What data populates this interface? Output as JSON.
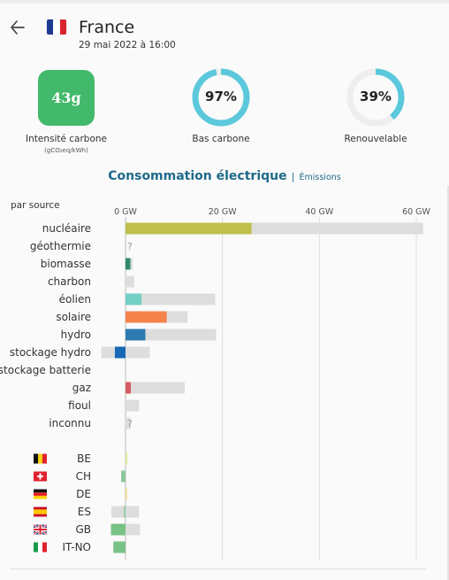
{
  "header": {
    "back_icon": "arrow-left-icon",
    "flag_icon": "france-flag-icon",
    "country": "France",
    "datetime": "29 mai 2022 à 16:00"
  },
  "metrics": {
    "carbon_intensity": {
      "value": "43g",
      "label": "Intensité carbone",
      "unit": "(gCO₂eq/kWh)",
      "color": "#43b96b"
    },
    "low_carbon": {
      "value": "97%",
      "label": "Bas carbone",
      "fraction": 0.97
    },
    "renewable": {
      "value": "39%",
      "label": "Renouvelable",
      "fraction": 0.39
    }
  },
  "tabs": {
    "active": "Consommation électrique",
    "separator": "|",
    "other": "Émissions"
  },
  "chart_title": "par source",
  "colors": {
    "accent": "#1f6a8a",
    "ring": "#5bc8dc",
    "ring_track": "#eeeeee",
    "capacity": "#dddddd"
  },
  "chart_data": {
    "type": "bar",
    "orientation": "horizontal",
    "x_unit": "GW",
    "xlim": [
      0,
      62
    ],
    "xticks": [
      {
        "value": 0,
        "label": "0 GW"
      },
      {
        "value": 20,
        "label": "20 GW"
      },
      {
        "value": 40,
        "label": "40 GW"
      },
      {
        "value": 60,
        "label": "60 GW"
      }
    ],
    "sources": [
      {
        "name": "nucléaire",
        "value": 26,
        "capacity": 61.4,
        "color": "#bfbf4d"
      },
      {
        "name": "géothermie",
        "value": null,
        "capacity": null,
        "unknown": "?",
        "color": "#a0a0a0"
      },
      {
        "name": "biomasse",
        "value": 1,
        "capacity": 1.5,
        "color": "#2f8a6a"
      },
      {
        "name": "charbon",
        "value": 0,
        "capacity": 1.8,
        "color": "#555555"
      },
      {
        "name": "éolien",
        "value": 3.3,
        "capacity": 18.5,
        "color": "#72d0c4"
      },
      {
        "name": "solaire",
        "value": 8.5,
        "capacity": 12.8,
        "color": "#f5834a"
      },
      {
        "name": "hydro",
        "value": 4.1,
        "capacity": 18.7,
        "color": "#2b7bb0"
      },
      {
        "name": "stockage hydro",
        "value": -2.2,
        "capacity": 5,
        "capacity_min": -5,
        "color": "#1769b5"
      },
      {
        "name": "stockage batterie",
        "value": null,
        "capacity": null,
        "color": "#99bbdd"
      },
      {
        "name": "gaz",
        "value": 1.1,
        "capacity": 12.2,
        "color": "#d45b63"
      },
      {
        "name": "fioul",
        "value": 0,
        "capacity": 2.8,
        "color": "#888888"
      },
      {
        "name": "inconnu",
        "value": null,
        "capacity": 1.1,
        "unknown": "?",
        "color": "#a0a0a0"
      }
    ],
    "exchanges": [
      {
        "code": "BE",
        "flag_icon": "belgium-flag-icon",
        "value": 0.4,
        "color": "#e3eaa0"
      },
      {
        "code": "CH",
        "flag_icon": "switzerland-flag-icon",
        "value": -0.9,
        "color": "#8cc79a"
      },
      {
        "code": "DE",
        "flag_icon": "germany-flag-icon",
        "value": 0.3,
        "color": "#f2dc8f"
      },
      {
        "code": "ES",
        "flag_icon": "spain-flag-icon",
        "value": -0.3,
        "capacity_min": -2.9,
        "capacity": 2.8,
        "color": "#8cc79a"
      },
      {
        "code": "GB",
        "flag_icon": "uk-flag-icon",
        "value": -3,
        "capacity_min": -3,
        "capacity": 3,
        "color": "#79c285"
      },
      {
        "code": "IT-NO",
        "flag_icon": "italy-flag-icon",
        "value": -2.5,
        "capacity_min": -2.5,
        "capacity": 0,
        "color": "#79c285"
      }
    ]
  }
}
